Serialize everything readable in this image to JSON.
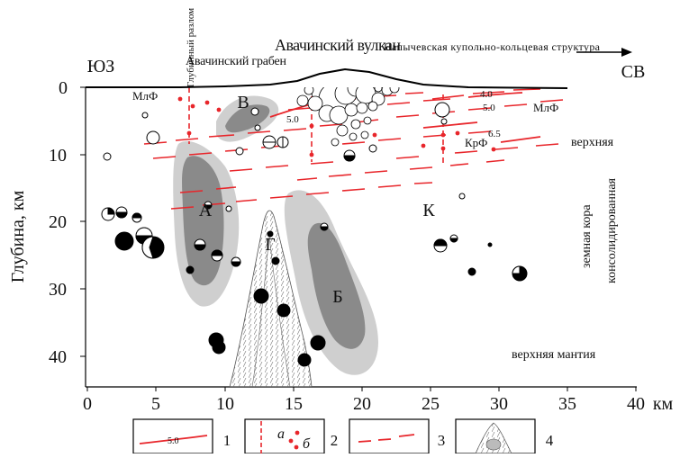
{
  "axes": {
    "ylabel": "Глубина, км",
    "x_ticks": [
      "0",
      "5",
      "10",
      "15",
      "20",
      "25",
      "30",
      "35",
      "40"
    ],
    "x_unit": "км",
    "y_ticks": [
      "0",
      "10",
      "20",
      "30",
      "40"
    ]
  },
  "sides": {
    "left": "ЮЗ",
    "right": "СВ"
  },
  "top_labels": {
    "fault": "Глубинный разлом",
    "graben": "Авачинский грабен",
    "volcano": "Авачинский вулкан",
    "structure": "Напычевская купольно-кольцевая структура"
  },
  "zones": {
    "A": "А",
    "B": "Б",
    "V": "В",
    "G": "Г",
    "K": "К"
  },
  "contour_labels": {
    "c40": "4.0",
    "c50a": "5.0",
    "c50b": "5.0",
    "c65": "6.5"
  },
  "fault_labels": {
    "mlf_left": "МлФ",
    "mlf_right": "МлФ",
    "krf": "КрФ"
  },
  "layer_labels": {
    "upper": "верхняя",
    "crust_line1": "земная кора",
    "crust_line2": "консолидированная",
    "mantle": "верхняя мантия"
  },
  "legend": [
    {
      "num": "1",
      "sample": "5.0"
    },
    {
      "num": "2",
      "a": "а",
      "b": "б"
    },
    {
      "num": "3"
    },
    {
      "num": "4"
    }
  ],
  "colors": {
    "red": "#e8262b",
    "grey_dark": "#8a8a8a",
    "grey_light": "#cfcfcf"
  }
}
